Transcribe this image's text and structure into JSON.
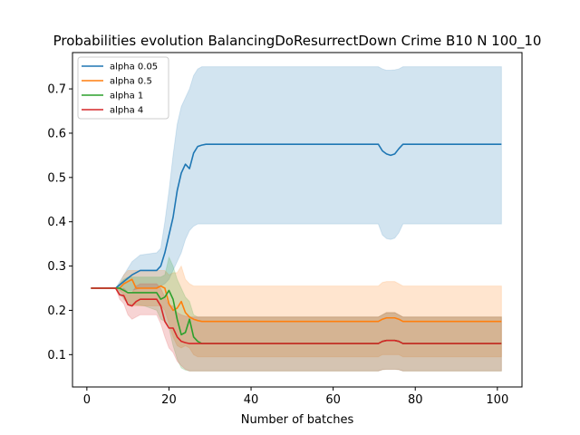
{
  "chart_data": {
    "type": "line",
    "title": "Probabilities evolution BalancingDoResurrectDown Crime B10 N 100_10",
    "xlabel": "Number of batches",
    "ylabel": "",
    "xlim": [
      -3.5,
      106
    ],
    "ylim": [
      0.027,
      0.782
    ],
    "xticks": [
      0,
      20,
      40,
      60,
      80,
      100
    ],
    "yticks": [
      0.1,
      0.2,
      0.3,
      0.4,
      0.5,
      0.6,
      0.7
    ],
    "grid": false,
    "legend_position": "top-left",
    "series": [
      {
        "name": "alpha 0.05",
        "color": "#1f77b4",
        "x": [
          1,
          7,
          9,
          11,
          13,
          17,
          18,
          19,
          20,
          21,
          22,
          23,
          24,
          25,
          26,
          27,
          28,
          29,
          30,
          71,
          72,
          73,
          74,
          75,
          76,
          77,
          101
        ],
        "mean": [
          0.25,
          0.25,
          0.265,
          0.28,
          0.29,
          0.29,
          0.3,
          0.33,
          0.37,
          0.41,
          0.47,
          0.51,
          0.53,
          0.52,
          0.555,
          0.57,
          0.573,
          0.575,
          0.575,
          0.575,
          0.56,
          0.553,
          0.55,
          0.553,
          0.565,
          0.575,
          0.575
        ],
        "lower": [
          0.25,
          0.25,
          0.245,
          0.245,
          0.25,
          0.25,
          0.255,
          0.26,
          0.27,
          0.29,
          0.31,
          0.33,
          0.36,
          0.38,
          0.39,
          0.395,
          0.395,
          0.395,
          0.395,
          0.395,
          0.37,
          0.362,
          0.36,
          0.363,
          0.375,
          0.395,
          0.395
        ],
        "upper": [
          0.25,
          0.25,
          0.28,
          0.31,
          0.325,
          0.33,
          0.34,
          0.4,
          0.47,
          0.55,
          0.62,
          0.66,
          0.68,
          0.7,
          0.73,
          0.745,
          0.75,
          0.75,
          0.75,
          0.75,
          0.745,
          0.742,
          0.742,
          0.743,
          0.745,
          0.75,
          0.75
        ]
      },
      {
        "name": "alpha 0.5",
        "color": "#ff7f0e",
        "x": [
          1,
          7,
          8,
          9,
          10,
          11,
          12,
          17,
          18,
          19,
          20,
          21,
          22,
          23,
          24,
          25,
          26,
          27,
          28,
          30,
          71,
          72,
          73,
          74,
          75,
          76,
          77,
          101
        ],
        "mean": [
          0.25,
          0.25,
          0.25,
          0.26,
          0.265,
          0.27,
          0.25,
          0.25,
          0.255,
          0.25,
          0.215,
          0.2,
          0.205,
          0.22,
          0.195,
          0.185,
          0.18,
          0.177,
          0.175,
          0.175,
          0.175,
          0.18,
          0.183,
          0.183,
          0.183,
          0.18,
          0.175,
          0.175
        ],
        "lower": [
          0.25,
          0.25,
          0.245,
          0.235,
          0.22,
          0.21,
          0.21,
          0.21,
          0.21,
          0.2,
          0.17,
          0.14,
          0.12,
          0.115,
          0.12,
          0.115,
          0.1,
          0.095,
          0.095,
          0.095,
          0.095,
          0.1,
          0.1,
          0.1,
          0.1,
          0.1,
          0.095,
          0.095
        ],
        "upper": [
          0.25,
          0.25,
          0.26,
          0.28,
          0.29,
          0.29,
          0.29,
          0.29,
          0.29,
          0.29,
          0.28,
          0.285,
          0.285,
          0.3,
          0.27,
          0.26,
          0.255,
          0.255,
          0.255,
          0.255,
          0.255,
          0.263,
          0.265,
          0.265,
          0.265,
          0.26,
          0.255,
          0.255
        ]
      },
      {
        "name": "alpha 1",
        "color": "#2ca02c",
        "x": [
          1,
          7,
          8,
          9,
          10,
          14,
          17,
          18,
          19,
          20,
          21,
          22,
          23,
          24,
          25,
          26,
          27,
          28,
          30,
          71,
          72,
          73,
          74,
          75,
          76,
          77,
          101
        ],
        "mean": [
          0.25,
          0.25,
          0.25,
          0.245,
          0.24,
          0.24,
          0.24,
          0.225,
          0.23,
          0.245,
          0.225,
          0.18,
          0.145,
          0.15,
          0.18,
          0.14,
          0.13,
          0.125,
          0.125,
          0.125,
          0.13,
          0.132,
          0.132,
          0.132,
          0.13,
          0.125,
          0.125
        ],
        "lower": [
          0.25,
          0.25,
          0.24,
          0.225,
          0.215,
          0.21,
          0.2,
          0.18,
          0.175,
          0.16,
          0.12,
          0.09,
          0.07,
          0.065,
          0.063,
          0.063,
          0.063,
          0.063,
          0.063,
          0.063,
          0.066,
          0.067,
          0.067,
          0.067,
          0.066,
          0.063,
          0.063
        ],
        "upper": [
          0.25,
          0.25,
          0.26,
          0.27,
          0.275,
          0.275,
          0.275,
          0.275,
          0.28,
          0.32,
          0.3,
          0.27,
          0.25,
          0.23,
          0.22,
          0.19,
          0.185,
          0.185,
          0.185,
          0.185,
          0.19,
          0.195,
          0.195,
          0.195,
          0.19,
          0.185,
          0.185
        ]
      },
      {
        "name": "alpha 4",
        "color": "#d62728",
        "x": [
          1,
          7,
          8,
          9,
          10,
          11,
          12,
          13,
          17,
          18,
          19,
          20,
          21,
          22,
          23,
          24,
          25,
          26,
          27,
          28,
          30,
          71,
          72,
          73,
          74,
          75,
          76,
          77,
          101
        ],
        "mean": [
          0.25,
          0.25,
          0.235,
          0.233,
          0.213,
          0.21,
          0.22,
          0.225,
          0.225,
          0.21,
          0.175,
          0.16,
          0.16,
          0.14,
          0.13,
          0.127,
          0.125,
          0.125,
          0.125,
          0.125,
          0.125,
          0.125,
          0.13,
          0.132,
          0.132,
          0.132,
          0.13,
          0.125,
          0.125
        ],
        "lower": [
          0.25,
          0.25,
          0.225,
          0.215,
          0.19,
          0.18,
          0.185,
          0.19,
          0.19,
          0.17,
          0.14,
          0.115,
          0.105,
          0.085,
          0.075,
          0.067,
          0.063,
          0.063,
          0.063,
          0.063,
          0.063,
          0.063,
          0.066,
          0.067,
          0.067,
          0.067,
          0.066,
          0.063,
          0.063
        ],
        "upper": [
          0.25,
          0.25,
          0.245,
          0.25,
          0.24,
          0.24,
          0.255,
          0.26,
          0.26,
          0.25,
          0.23,
          0.21,
          0.21,
          0.195,
          0.19,
          0.187,
          0.185,
          0.185,
          0.185,
          0.185,
          0.185,
          0.185,
          0.19,
          0.195,
          0.195,
          0.195,
          0.19,
          0.185,
          0.185
        ]
      }
    ]
  }
}
